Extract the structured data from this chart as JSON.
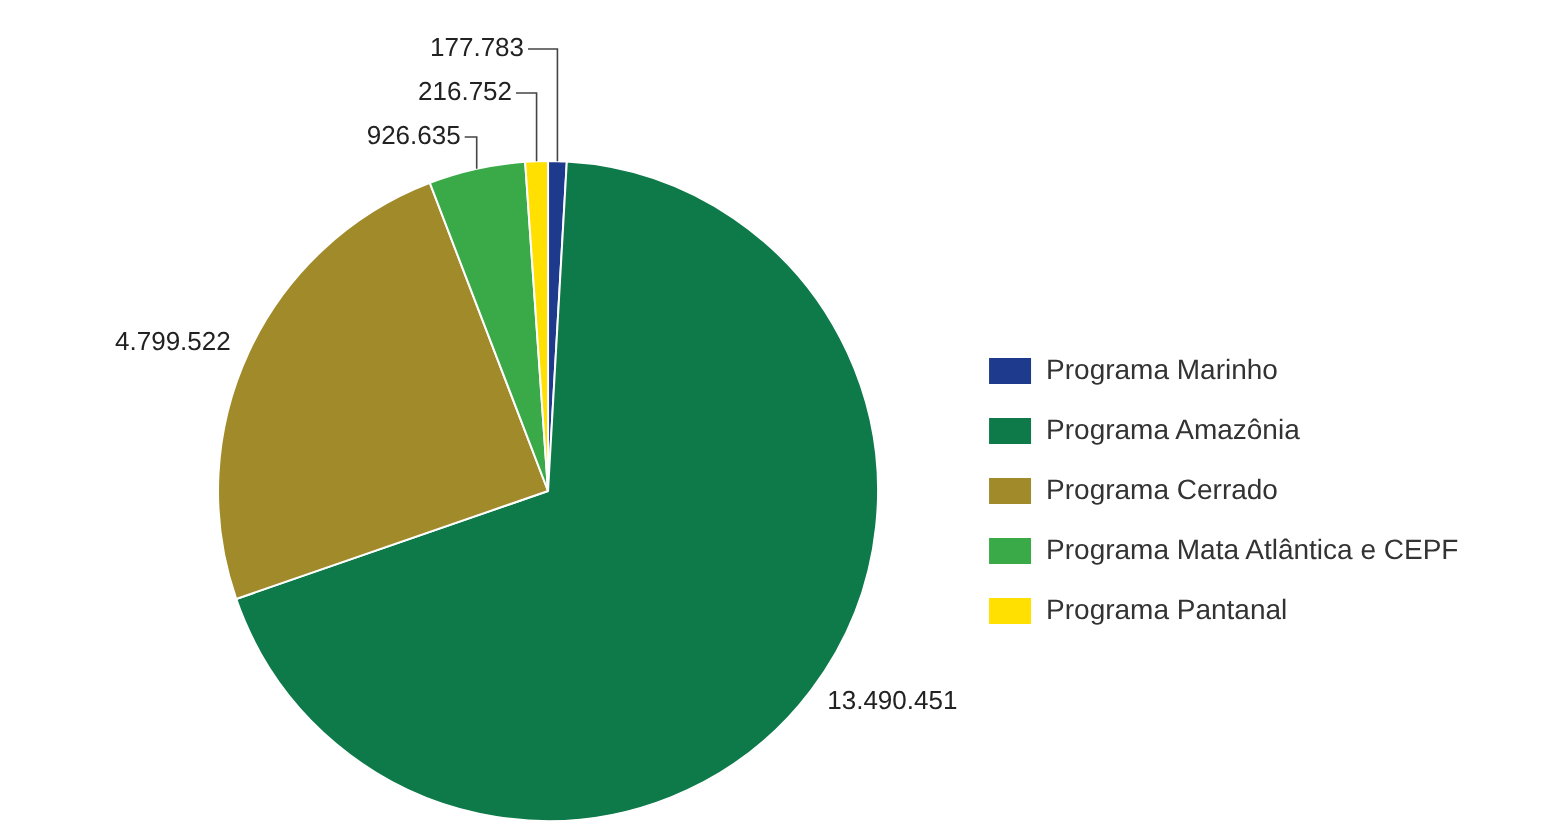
{
  "chart_data": {
    "type": "pie",
    "categories": [
      "Programa Marinho",
      "Programa Amazônia",
      "Programa Cerrado",
      "Programa Mata Atlântica e CEPF",
      "Programa Pantanal"
    ],
    "values": [
      177783,
      13490451,
      4799522,
      926635,
      216752
    ],
    "value_labels": [
      "177.783",
      "13.490.451",
      "4.799.522",
      "926.635",
      "216.752"
    ],
    "colors": [
      "#1e3a8c",
      "#0e7a4a",
      "#a08a2a",
      "#3aaa48",
      "#ffe000"
    ],
    "legend": "right"
  }
}
